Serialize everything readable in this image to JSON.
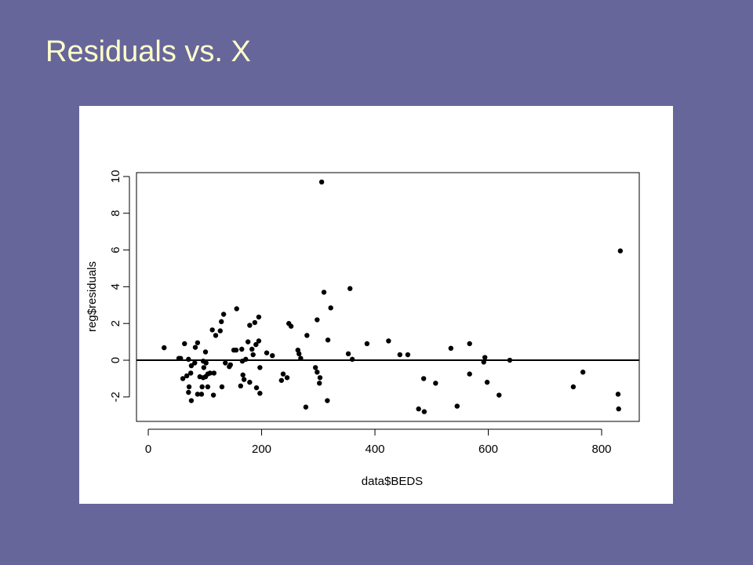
{
  "chart_data": {
    "type": "scatter",
    "title": "Residuals vs. X",
    "x_label": "data$BEDS",
    "y_label": "reg$residuals",
    "color": "#000000",
    "reference_line": 0,
    "xlim": [
      -20.8,
      866.4
    ],
    "ylim": [
      -3.33,
      10.21
    ],
    "xticks": [
      0,
      200,
      400,
      600,
      800
    ],
    "yticks": [
      -2,
      0,
      2,
      4,
      6,
      8,
      10
    ],
    "x": [
      28,
      54,
      57,
      64,
      61,
      68,
      71,
      71,
      72,
      75,
      76,
      76,
      82,
      83,
      87,
      87,
      91,
      94,
      95,
      97,
      97,
      98,
      101,
      101,
      102,
      105,
      105,
      109,
      113,
      115,
      116,
      119,
      127,
      129,
      130,
      133,
      136,
      143,
      145,
      151,
      156,
      155,
      163,
      165,
      166,
      167,
      169,
      172,
      176,
      179,
      179,
      183,
      185,
      188,
      190,
      191,
      195,
      195,
      197,
      197,
      209,
      219,
      235,
      238,
      245,
      248,
      252,
      264,
      266,
      269,
      278,
      280,
      295,
      298,
      298,
      302,
      303,
      306,
      310,
      316,
      317,
      322,
      353,
      356,
      360,
      386,
      424,
      444,
      458,
      477,
      486,
      487,
      507,
      534,
      545,
      567,
      567,
      592,
      594,
      598,
      619,
      638,
      750,
      767,
      829,
      830,
      833
    ],
    "values": [
      0.68,
      0.1,
      0.1,
      0.9,
      -1,
      -0.85,
      0.05,
      -1.75,
      -1.45,
      -0.7,
      -0.3,
      -2.2,
      -0.15,
      0.7,
      0.95,
      -1.85,
      -0.9,
      -1.85,
      -1.45,
      -0.05,
      -0.95,
      -0.4,
      0.45,
      -0.9,
      -0.15,
      -1.45,
      -0.75,
      -0.7,
      1.65,
      -1.9,
      -0.7,
      1.35,
      1.6,
      2.1,
      -1.45,
      2.5,
      -0.15,
      -0.35,
      -0.25,
      0.55,
      2.8,
      0.55,
      -1.4,
      0.6,
      -0.05,
      -0.8,
      -1.05,
      0.05,
      1,
      -1.2,
      1.9,
      0.6,
      0.3,
      2.05,
      0.85,
      -1.5,
      2.35,
      1.05,
      -0.4,
      -1.8,
      0.4,
      0.25,
      -1.1,
      -0.75,
      -0.95,
      2,
      1.85,
      0.55,
      0.35,
      0.1,
      -2.55,
      1.35,
      -0.4,
      2.2,
      -0.65,
      -1.25,
      -0.95,
      9.7,
      3.7,
      -2.2,
      1.1,
      2.85,
      0.35,
      3.9,
      0.05,
      0.9,
      1.05,
      0.3,
      0.3,
      -2.65,
      -1,
      -2.8,
      -1.25,
      0.65,
      -2.5,
      0.9,
      -0.75,
      -0.1,
      0.15,
      -1.2,
      -1.9,
      0,
      -1.45,
      -0.65,
      -1.85,
      -2.65,
      5.95
    ]
  }
}
